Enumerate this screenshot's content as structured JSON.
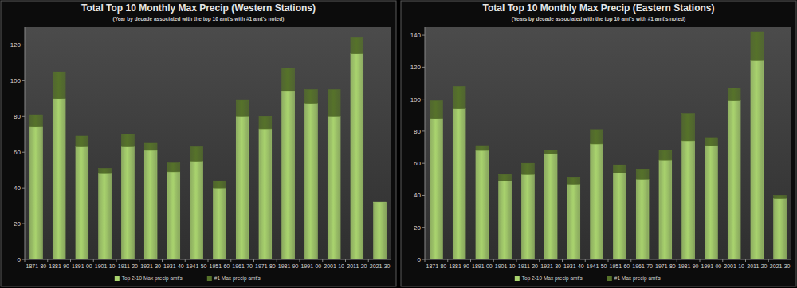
{
  "chart_data": [
    {
      "type": "bar",
      "title": "Total Top 10 Monthly Max Precip (Western Stations)",
      "subtitle": "(Year by decade associated with the top 10 amt's with #1 amt's noted)",
      "categories": [
        "1871-80",
        "1881-90",
        "1891-00",
        "1901-10",
        "1911-20",
        "1921-30",
        "1931-40",
        "1941-50",
        "1951-60",
        "1961-70",
        "1971-80",
        "1981-90",
        "1991-00",
        "2001-10",
        "2011-20",
        "2021-30"
      ],
      "series": [
        {
          "name": "Top 2-10 Max precip amt's",
          "color": "#a9d36e",
          "values": [
            74,
            90,
            63,
            48,
            63,
            61,
            49,
            55,
            40,
            80,
            73,
            94,
            87,
            80,
            115,
            32
          ]
        },
        {
          "name": "#1 Max precip amt's",
          "color": "#56722a",
          "values": [
            7,
            15,
            6,
            3,
            7,
            4,
            5,
            8,
            4,
            9,
            7,
            13,
            8,
            15,
            9,
            0
          ]
        }
      ],
      "ylim": [
        0,
        130
      ],
      "yticks": [
        0,
        20,
        40,
        60,
        80,
        100,
        120
      ],
      "stacked": true,
      "grid": false,
      "legend": "bottom"
    },
    {
      "type": "bar",
      "title": "Total Top 10 Monthly Max Precip (Eastern Stations)",
      "subtitle": "(Years by decade associated with the top 10 amt's with #1 amt's noted)",
      "categories": [
        "1871-80",
        "1881-90",
        "1891-00",
        "1901-10",
        "1911-20",
        "1921-30",
        "1931-40",
        "1941-50",
        "1951-60",
        "1961-70",
        "1971-80",
        "1981-90",
        "1991-00",
        "2001-10",
        "2011-20",
        "2021-30"
      ],
      "series": [
        {
          "name": "Top 2-10 Max precip amt's",
          "color": "#a9d36e",
          "values": [
            88,
            94,
            68,
            49,
            53,
            66,
            47,
            72,
            54,
            50,
            62,
            74,
            71,
            99,
            124,
            38
          ]
        },
        {
          "name": "#1 Max precip amt's",
          "color": "#56722a",
          "values": [
            11,
            14,
            3,
            4,
            7,
            2,
            4,
            9,
            5,
            6,
            6,
            17,
            5,
            8,
            18,
            2
          ]
        }
      ],
      "ylim": [
        0,
        145
      ],
      "yticks": [
        0,
        20,
        40,
        60,
        80,
        100,
        120,
        140
      ],
      "stacked": true,
      "grid": false,
      "legend": "bottom"
    }
  ]
}
